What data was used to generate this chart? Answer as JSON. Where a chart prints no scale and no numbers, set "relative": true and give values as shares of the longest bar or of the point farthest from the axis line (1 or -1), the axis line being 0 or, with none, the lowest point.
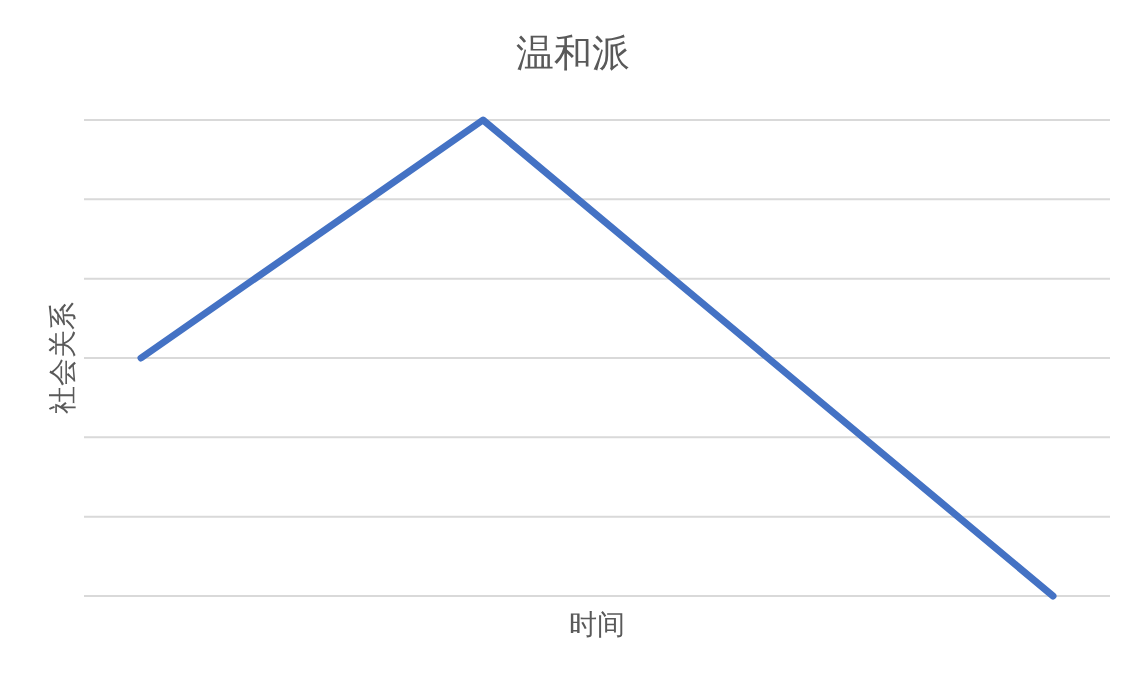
{
  "chart_data": {
    "type": "line",
    "title": "温和派",
    "xlabel": "时间",
    "ylabel": "社会关系",
    "categories": [
      null,
      null,
      null,
      null,
      null,
      null,
      null,
      null,
      null
    ],
    "series": [
      {
        "color": "#4472c4",
        "values": [
          0.5,
          0.667,
          0.833,
          1,
          0.8,
          0.6,
          0.4,
          0.2,
          0
        ]
      }
    ],
    "relative": true,
    "grid": "y",
    "marker": "none",
    "line_style": "solid"
  }
}
